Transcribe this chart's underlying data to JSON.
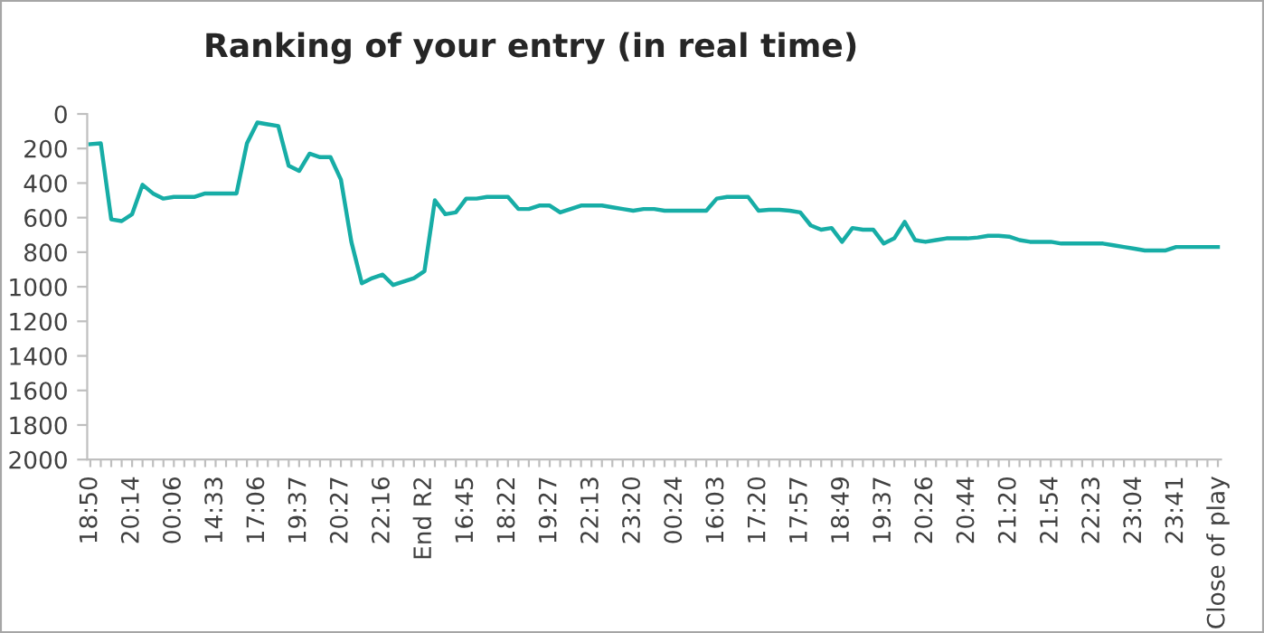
{
  "chart_data": {
    "type": "line",
    "title": "Ranking of your entry (in real time)",
    "categories": [
      "18:50",
      null,
      null,
      null,
      "20:14",
      null,
      null,
      null,
      "00:06",
      null,
      null,
      null,
      "14:33",
      null,
      null,
      null,
      "17:06",
      null,
      null,
      null,
      "19:37",
      null,
      null,
      null,
      "20:27",
      null,
      null,
      null,
      "22:16",
      null,
      null,
      null,
      "End R2",
      null,
      null,
      null,
      "16:45",
      null,
      null,
      null,
      "18:22",
      null,
      null,
      null,
      "19:27",
      null,
      null,
      null,
      "22:13",
      null,
      null,
      null,
      "23:20",
      null,
      null,
      null,
      "00:24",
      null,
      null,
      null,
      "16:03",
      null,
      null,
      null,
      "17:20",
      null,
      null,
      null,
      "17:57",
      null,
      null,
      null,
      "18:49",
      null,
      null,
      null,
      "19:37",
      null,
      null,
      null,
      "20:26",
      null,
      null,
      null,
      "20:44",
      null,
      null,
      null,
      "21:20",
      null,
      null,
      null,
      "21:54",
      null,
      null,
      null,
      "22:23",
      null,
      null,
      null,
      "23:04",
      null,
      null,
      null,
      "23:41",
      null,
      null,
      null,
      "Close of play"
    ],
    "series": [
      {
        "color": "#17ada6",
        "values": [
          175,
          170,
          610,
          620,
          580,
          410,
          460,
          490,
          480,
          480,
          480,
          460,
          460,
          460,
          460,
          170,
          50,
          60,
          70,
          300,
          330,
          230,
          250,
          250,
          380,
          740,
          980,
          950,
          930,
          990,
          970,
          950,
          910,
          500,
          580,
          570,
          490,
          490,
          480,
          480,
          480,
          550,
          550,
          530,
          530,
          570,
          550,
          530,
          530,
          530,
          540,
          550,
          560,
          550,
          550,
          560,
          560,
          560,
          560,
          560,
          490,
          480,
          480,
          480,
          560,
          555,
          555,
          560,
          570,
          645,
          670,
          660,
          740,
          660,
          670,
          670,
          750,
          720,
          625,
          730,
          740,
          730,
          720,
          720,
          720,
          715,
          705,
          705,
          710,
          730,
          740,
          740,
          740,
          750,
          750,
          750,
          750,
          750,
          760,
          770,
          780,
          790,
          790,
          790,
          770,
          770,
          770,
          770,
          770
        ]
      }
    ],
    "ylim": [
      2000,
      0
    ],
    "yticks": [
      0,
      200,
      400,
      600,
      800,
      1000,
      1200,
      1400,
      1600,
      1800,
      2000
    ],
    "grid": false,
    "legend": false,
    "marker": "none",
    "line_style": "solid"
  }
}
